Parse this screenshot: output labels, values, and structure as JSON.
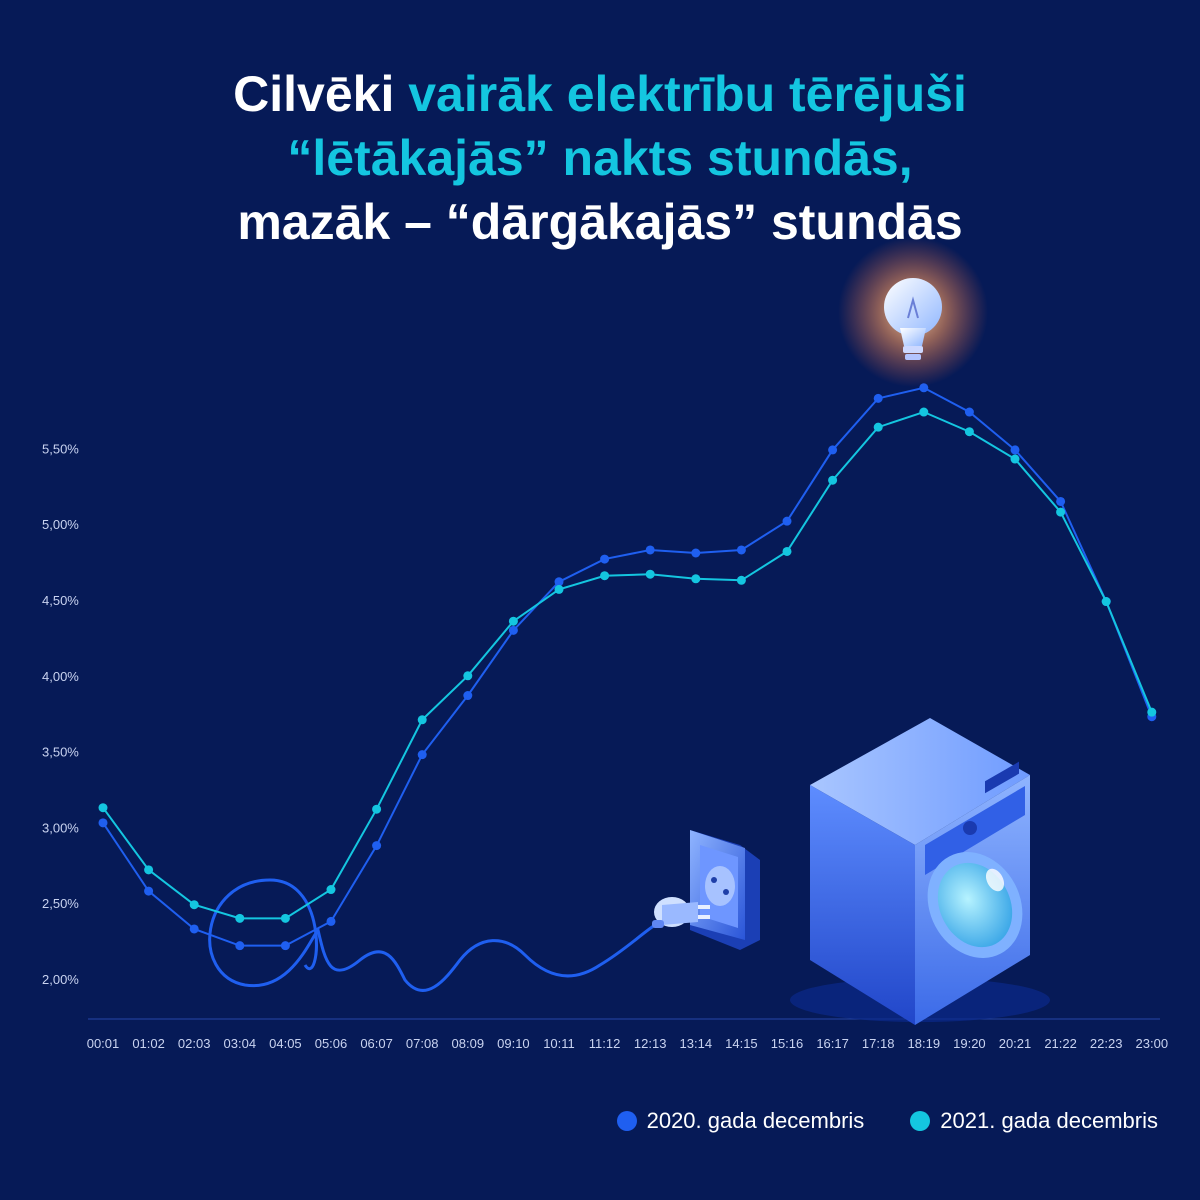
{
  "title": {
    "line1_white": "Cilvēki",
    "line1_cyan": "vairāk elektrību tērējuši",
    "line2_cyan": "“lētākajās” nakts stundās,",
    "line3_white": "mazāk – “dārgākajās” stundās"
  },
  "colors": {
    "background": "#061a57",
    "series_2020": "#1f5ff0",
    "series_2021": "#14c6e0"
  },
  "chart_data": {
    "type": "line",
    "categories": [
      "00:01",
      "01:02",
      "02:03",
      "03:04",
      "04:05",
      "05:06",
      "06:07",
      "07:08",
      "08:09",
      "09:10",
      "10:11",
      "11:12",
      "12:13",
      "13:14",
      "14:15",
      "15:16",
      "16:17",
      "17:18",
      "18:19",
      "19:20",
      "20:21",
      "21:22",
      "22:23",
      "23:00"
    ],
    "y_ticks": [
      "5,50%",
      "5,00%",
      "4,50%",
      "4,00%",
      "3,50%",
      "3,00%",
      "2,50%",
      "2,00%"
    ],
    "y_tick_values": [
      5.5,
      5.0,
      4.5,
      4.0,
      3.5,
      3.0,
      2.5,
      2.0
    ],
    "ylim": [
      2.0,
      5.5
    ],
    "grid": false,
    "legend_position": "bottom-right",
    "series": [
      {
        "name": "2020. gada decembris",
        "color": "#1f5ff0",
        "values": [
          3.03,
          2.58,
          2.33,
          2.22,
          2.22,
          2.38,
          2.88,
          3.48,
          3.87,
          4.3,
          4.62,
          4.77,
          4.83,
          4.81,
          4.83,
          5.02,
          5.49,
          5.83,
          5.9,
          5.74,
          5.49,
          5.15,
          4.49,
          3.73
        ]
      },
      {
        "name": "2021. gada decembris",
        "color": "#14c6e0",
        "values": [
          3.13,
          2.72,
          2.49,
          2.4,
          2.4,
          2.59,
          3.12,
          3.71,
          4.0,
          4.36,
          4.57,
          4.66,
          4.67,
          4.64,
          4.63,
          4.82,
          5.29,
          5.64,
          5.74,
          5.61,
          5.43,
          5.08,
          4.49,
          3.76
        ]
      }
    ]
  },
  "legend": [
    {
      "label": "2020. gada decembris",
      "color": "#1f5ff0"
    },
    {
      "label": "2021. gada decembris",
      "color": "#14c6e0"
    }
  ],
  "illustrations": [
    "lightbulb-icon",
    "power-plug-icon",
    "power-socket-icon",
    "washing-machine-icon",
    "cable-icon"
  ]
}
